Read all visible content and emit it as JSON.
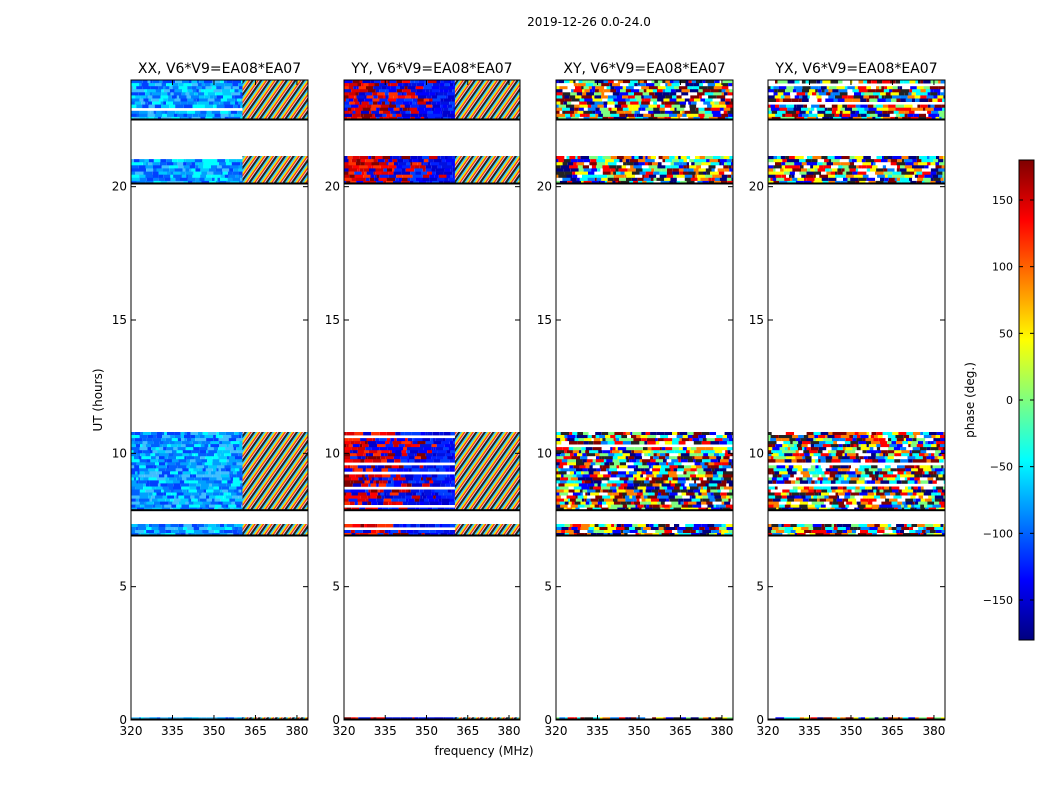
{
  "chart_data": {
    "type": "heatmap",
    "suptitle": "2019-12-26 0.0-24.0",
    "xlabel": "frequency (MHz)",
    "ylabel": "UT (hours)",
    "xlim": [
      320,
      384
    ],
    "ylim": [
      0,
      24
    ],
    "xticks": [
      "320",
      "335",
      "350",
      "365",
      "380"
    ],
    "xtick_values": [
      320,
      335,
      350,
      365,
      380
    ],
    "yticks": [
      "0",
      "5",
      "10",
      "15",
      "20"
    ],
    "ytick_values": [
      0,
      5,
      10,
      15,
      20
    ],
    "panels": [
      {
        "title": "XX, V6*V9=EA08*EA07",
        "pattern": "blue"
      },
      {
        "title": "YY, V6*V9=EA08*EA07",
        "pattern": "redblue"
      },
      {
        "title": "XY, V6*V9=EA08*EA07",
        "pattern": "noisy"
      },
      {
        "title": "YX, V6*V9=EA08*EA07",
        "pattern": "noisy"
      }
    ],
    "data_bands_ut": [
      [
        0.0,
        0.1
      ],
      [
        6.9,
        7.35
      ],
      [
        7.85,
        10.8
      ],
      [
        20.1,
        21.15
      ],
      [
        22.5,
        24.0
      ]
    ],
    "colorbar": {
      "label": "phase (deg.)",
      "range": [
        -180,
        180
      ],
      "ticks": [
        "150",
        "100",
        "50",
        "0",
        "−50",
        "−100",
        "−150"
      ],
      "tick_values": [
        150,
        100,
        50,
        0,
        -50,
        -100,
        -150
      ],
      "colormap": [
        "#00007f",
        "#0000ff",
        "#007fff",
        "#00ffff",
        "#7fff7f",
        "#ffff00",
        "#ff7f00",
        "#ff0000",
        "#7f0000"
      ]
    }
  }
}
